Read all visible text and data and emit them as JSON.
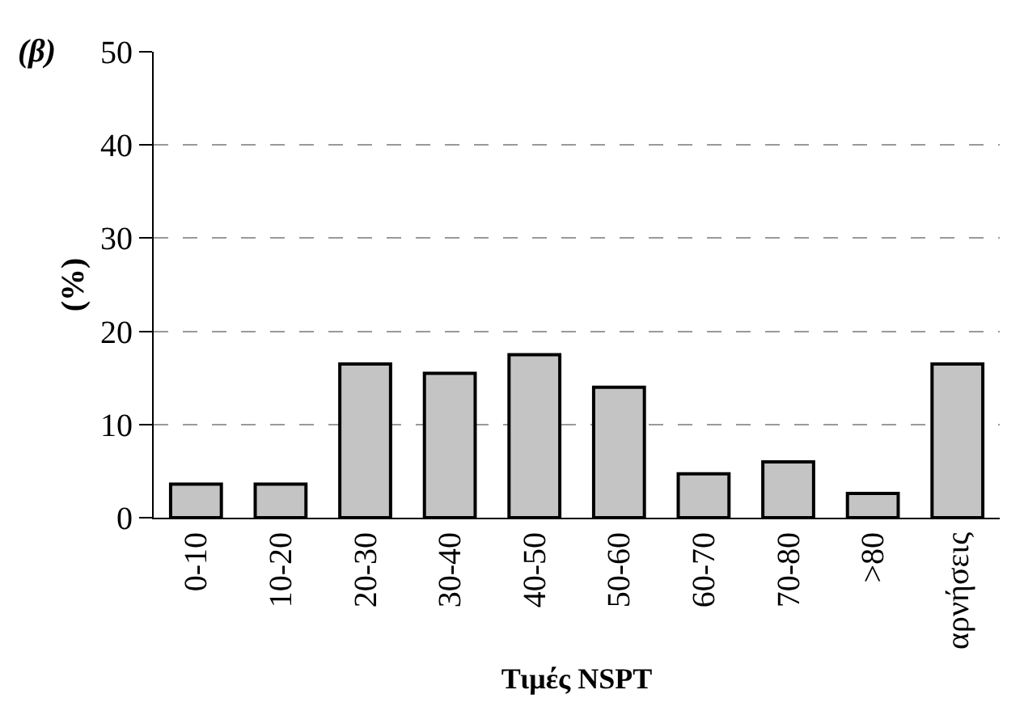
{
  "chart_data": {
    "type": "bar",
    "title": "(β)",
    "xlabel": "Τιμές NSPT",
    "ylabel": "(%)",
    "categories": [
      "0-10",
      "10-20",
      "20-30",
      "30-40",
      "40-50",
      "50-60",
      "60-70",
      "70-80",
      ">80",
      "αρνήσεις"
    ],
    "values": [
      3.6,
      3.6,
      16.5,
      15.5,
      17.5,
      14.0,
      4.7,
      6.0,
      2.6,
      16.5
    ],
    "color": "#c4c4c4",
    "ylim": [
      0,
      50
    ],
    "yticks": [
      0,
      10,
      20,
      30,
      40,
      50
    ],
    "grid": "y",
    "legend": false
  }
}
